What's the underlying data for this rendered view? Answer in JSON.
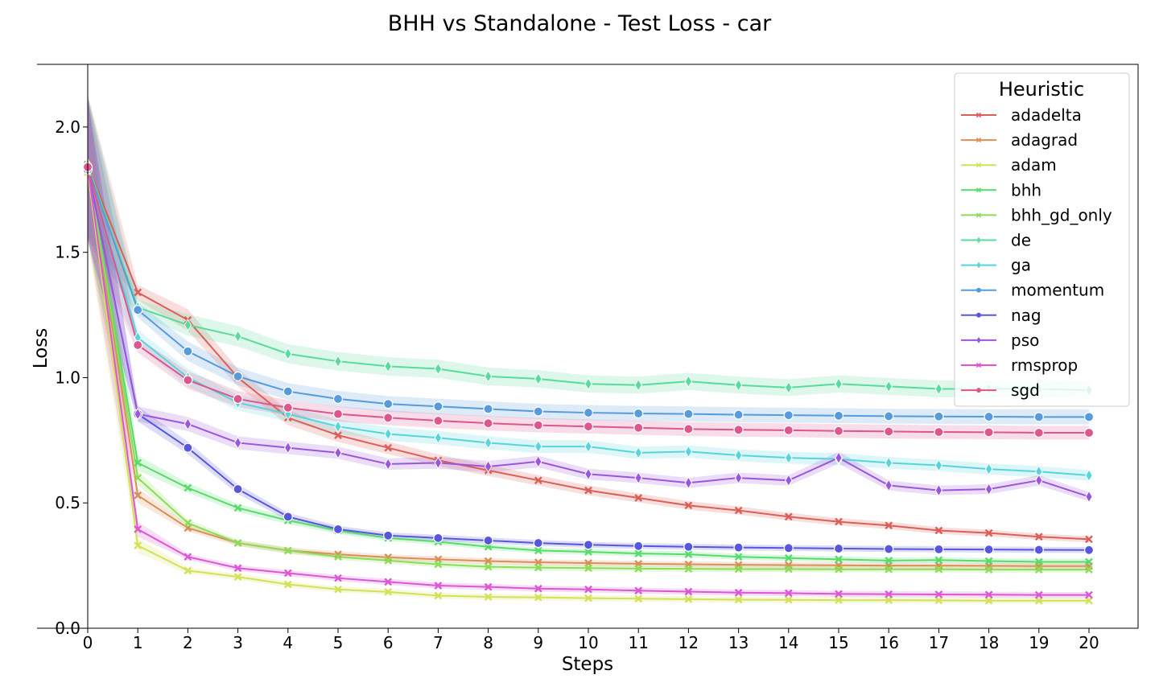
{
  "chart_data": {
    "type": "line",
    "title": "BHH vs Standalone - Test Loss - car",
    "xlabel": "Steps",
    "ylabel": "Loss",
    "xlim": [
      0,
      21
    ],
    "ylim": [
      0,
      2.25
    ],
    "x_ticks": [
      0,
      1,
      2,
      3,
      4,
      5,
      6,
      7,
      8,
      9,
      10,
      11,
      12,
      13,
      14,
      15,
      16,
      17,
      18,
      19,
      20
    ],
    "y_ticks": [
      0.0,
      0.5,
      1.0,
      1.5,
      2.0
    ],
    "y_tick_labels": [
      "0.0",
      "0.5",
      "1.0",
      "1.5",
      "2.0"
    ],
    "grid": false,
    "legend": {
      "title": "Heuristic",
      "position": "top-right"
    },
    "x": [
      0,
      1,
      2,
      3,
      4,
      5,
      6,
      7,
      8,
      9,
      10,
      11,
      12,
      13,
      14,
      15,
      16,
      17,
      18,
      19,
      20
    ],
    "series": [
      {
        "name": "adadelta",
        "color": "#db5f57",
        "marker": "x",
        "values": [
          1.85,
          1.34,
          1.23,
          1.0,
          0.84,
          0.77,
          0.72,
          0.67,
          0.63,
          0.59,
          0.55,
          0.52,
          0.49,
          0.47,
          0.445,
          0.425,
          0.41,
          0.39,
          0.38,
          0.365,
          0.355
        ]
      },
      {
        "name": "adagrad",
        "color": "#dc8e57",
        "marker": "x",
        "values": [
          1.85,
          0.53,
          0.4,
          0.34,
          0.31,
          0.295,
          0.283,
          0.275,
          0.268,
          0.263,
          0.26,
          0.257,
          0.255,
          0.253,
          0.252,
          0.251,
          0.25,
          0.25,
          0.249,
          0.248,
          0.248
        ]
      },
      {
        "name": "adam",
        "color": "#d3e157",
        "marker": "x",
        "values": [
          1.82,
          0.33,
          0.23,
          0.205,
          0.175,
          0.155,
          0.145,
          0.13,
          0.125,
          0.123,
          0.12,
          0.118,
          0.116,
          0.114,
          0.113,
          0.112,
          0.112,
          0.111,
          0.11,
          0.11,
          0.11
        ]
      },
      {
        "name": "bhh",
        "color": "#57dc6a",
        "marker": "x",
        "values": [
          1.84,
          0.66,
          0.56,
          0.48,
          0.43,
          0.39,
          0.36,
          0.345,
          0.325,
          0.31,
          0.305,
          0.298,
          0.295,
          0.285,
          0.28,
          0.275,
          0.27,
          0.272,
          0.268,
          0.265,
          0.265
        ]
      },
      {
        "name": "bhh_gd_only",
        "color": "#8ade56",
        "marker": "x",
        "values": [
          1.84,
          0.6,
          0.42,
          0.34,
          0.31,
          0.285,
          0.27,
          0.255,
          0.245,
          0.242,
          0.24,
          0.238,
          0.237,
          0.236,
          0.236,
          0.235,
          0.235,
          0.235,
          0.234,
          0.234,
          0.234
        ]
      },
      {
        "name": "de",
        "color": "#57dc9c",
        "marker": "d",
        "values": [
          1.85,
          1.28,
          1.21,
          1.165,
          1.095,
          1.065,
          1.045,
          1.035,
          1.005,
          0.995,
          0.975,
          0.97,
          0.985,
          0.97,
          0.96,
          0.975,
          0.965,
          0.955,
          0.955,
          0.955,
          0.95
        ]
      },
      {
        "name": "ga",
        "color": "#57d4dc",
        "marker": "d",
        "values": [
          1.84,
          1.16,
          1.0,
          0.9,
          0.855,
          0.805,
          0.775,
          0.76,
          0.74,
          0.725,
          0.725,
          0.7,
          0.705,
          0.69,
          0.68,
          0.675,
          0.66,
          0.65,
          0.635,
          0.625,
          0.61
        ]
      },
      {
        "name": "momentum",
        "color": "#579bdc",
        "marker": "o",
        "values": [
          1.84,
          1.27,
          1.105,
          1.005,
          0.945,
          0.915,
          0.895,
          0.885,
          0.875,
          0.865,
          0.86,
          0.857,
          0.855,
          0.852,
          0.85,
          0.848,
          0.846,
          0.845,
          0.844,
          0.843,
          0.843
        ]
      },
      {
        "name": "nag",
        "color": "#5857dc",
        "marker": "o",
        "values": [
          1.83,
          0.855,
          0.72,
          0.555,
          0.445,
          0.395,
          0.37,
          0.36,
          0.35,
          0.34,
          0.333,
          0.328,
          0.325,
          0.322,
          0.32,
          0.318,
          0.316,
          0.315,
          0.314,
          0.313,
          0.312
        ]
      },
      {
        "name": "pso",
        "color": "#9b57dc",
        "marker": "d",
        "values": [
          1.83,
          0.855,
          0.815,
          0.74,
          0.72,
          0.7,
          0.655,
          0.66,
          0.645,
          0.665,
          0.615,
          0.6,
          0.58,
          0.6,
          0.59,
          0.68,
          0.57,
          0.55,
          0.555,
          0.59,
          0.525
        ]
      },
      {
        "name": "rmsprop",
        "color": "#dc57d4",
        "marker": "x",
        "values": [
          1.84,
          0.395,
          0.285,
          0.24,
          0.22,
          0.2,
          0.185,
          0.17,
          0.165,
          0.158,
          0.155,
          0.15,
          0.146,
          0.142,
          0.14,
          0.137,
          0.136,
          0.135,
          0.134,
          0.133,
          0.133
        ]
      },
      {
        "name": "sgd",
        "color": "#dc578e",
        "marker": "o",
        "values": [
          1.84,
          1.13,
          0.99,
          0.915,
          0.88,
          0.855,
          0.84,
          0.828,
          0.818,
          0.81,
          0.805,
          0.8,
          0.795,
          0.792,
          0.79,
          0.787,
          0.785,
          0.783,
          0.782,
          0.78,
          0.78
        ]
      }
    ]
  }
}
